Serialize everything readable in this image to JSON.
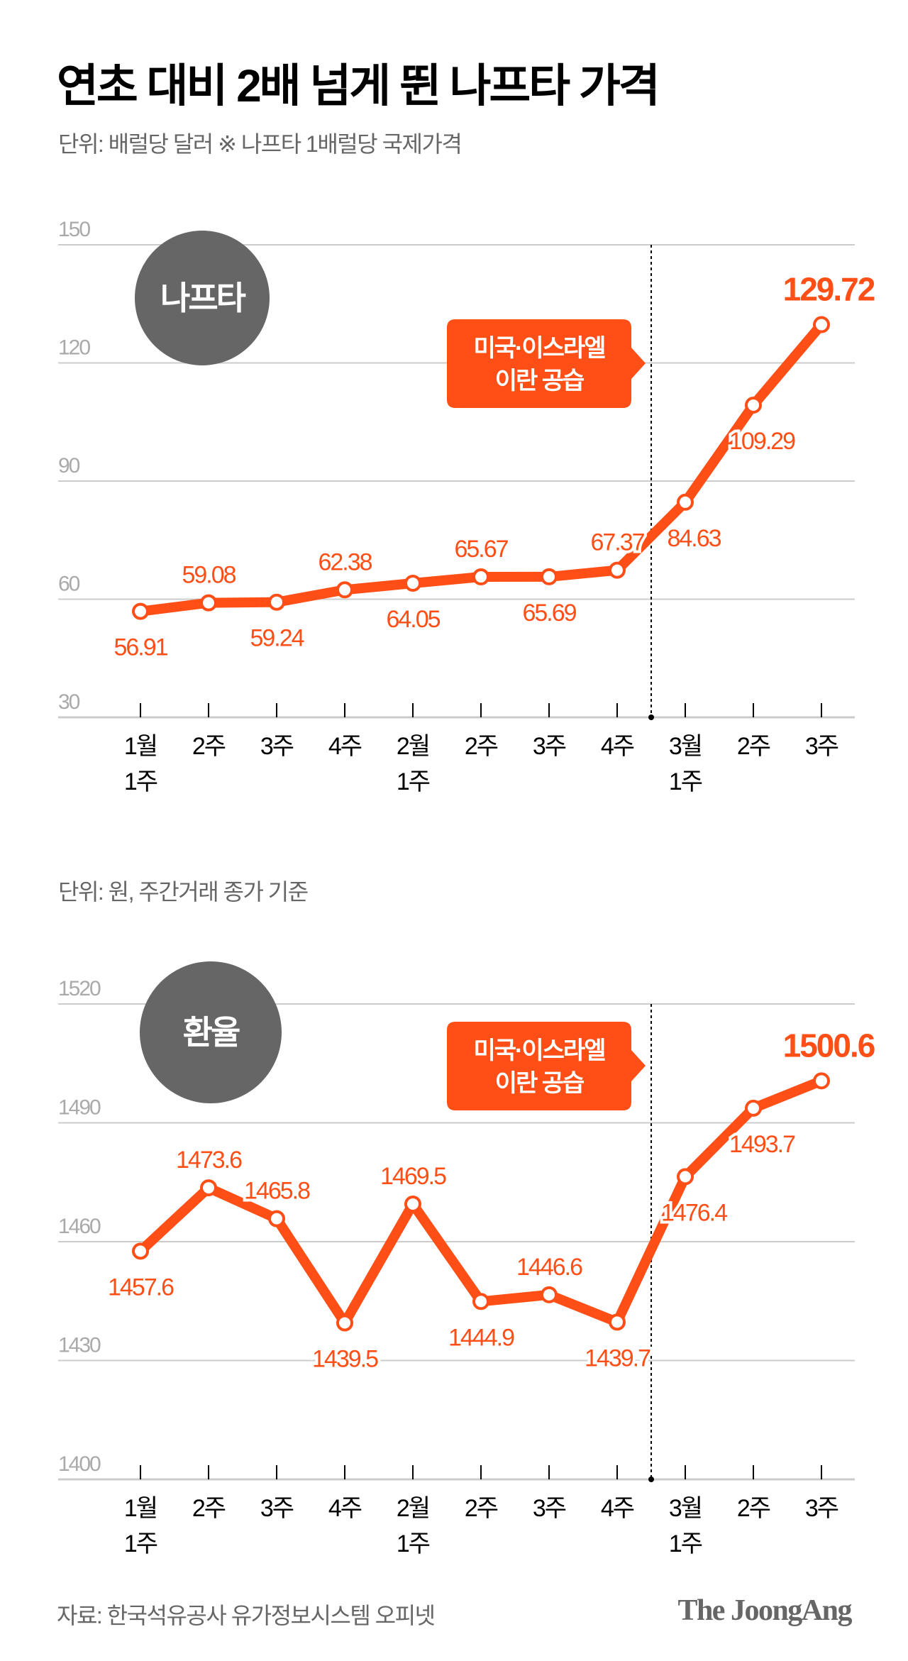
{
  "title": "연초 대비 2배 넘게 뛴 나프타 가격",
  "footer": {
    "source": "자료: 한국석유공사 유가정보시스템 오피넷",
    "logo": "The JoongAng"
  },
  "colors": {
    "accent": "#FF4F17",
    "badge": "#666666",
    "grid": "#CCCCCC"
  },
  "chart_data": [
    {
      "type": "line",
      "subtitle": "단위: 배럴당 달러 ※ 나프타 1배럴당 국제가격",
      "badge": "나프타",
      "annotation": [
        "미국·이스라엘",
        "이란 공습"
      ],
      "categories": [
        [
          "1월",
          "1주"
        ],
        [
          "2주"
        ],
        [
          "3주"
        ],
        [
          "4주"
        ],
        [
          "2월",
          "1주"
        ],
        [
          "2주"
        ],
        [
          "3주"
        ],
        [
          "4주"
        ],
        [
          "3월",
          "1주"
        ],
        [
          "2주"
        ],
        [
          "3주"
        ]
      ],
      "values": [
        56.91,
        59.08,
        59.24,
        62.38,
        64.05,
        65.67,
        65.69,
        67.37,
        84.63,
        109.29,
        129.72
      ],
      "labels": [
        "56.91",
        "59.08",
        "59.24",
        "62.38",
        "64.05",
        "65.67",
        "65.69",
        "67.37",
        "84.63",
        "109.29",
        "129.72"
      ],
      "yticks": [
        "150",
        "120",
        "90",
        "60",
        "30"
      ],
      "ylim": [
        30,
        150
      ],
      "grid": true
    },
    {
      "type": "line",
      "subtitle": "단위: 원, 주간거래 종가 기준",
      "badge": "환율",
      "annotation": [
        "미국·이스라엘",
        "이란 공습"
      ],
      "categories": [
        [
          "1월",
          "1주"
        ],
        [
          "2주"
        ],
        [
          "3주"
        ],
        [
          "4주"
        ],
        [
          "2월",
          "1주"
        ],
        [
          "2주"
        ],
        [
          "3주"
        ],
        [
          "4주"
        ],
        [
          "3월",
          "1주"
        ],
        [
          "2주"
        ],
        [
          "3주"
        ]
      ],
      "values": [
        1457.6,
        1473.6,
        1465.8,
        1439.5,
        1469.5,
        1444.9,
        1446.6,
        1439.7,
        1476.4,
        1493.7,
        1500.6
      ],
      "labels": [
        "1457.6",
        "1473.6",
        "1465.8",
        "1439.5",
        "1469.5",
        "1444.9",
        "1446.6",
        "1439.7",
        "1476.4",
        "1493.7",
        "1500.6"
      ],
      "yticks": [
        "1520",
        "1490",
        "1460",
        "1430",
        "1400"
      ],
      "ylim": [
        1400,
        1520
      ],
      "grid": true
    }
  ]
}
